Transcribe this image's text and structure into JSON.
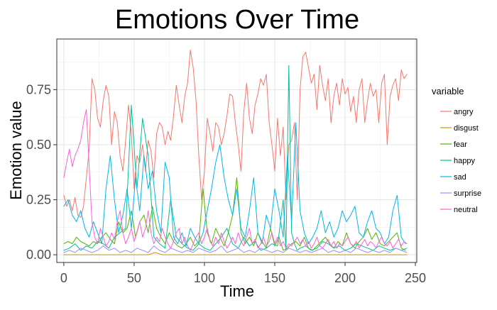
{
  "chart_data": {
    "type": "line",
    "title": "Emotions Over Time",
    "xlabel": "Time",
    "ylabel": "Emotion value",
    "xlim": [
      -5,
      251
    ],
    "ylim": [
      -0.035,
      0.98
    ],
    "x_ticks": [
      0,
      50,
      100,
      150,
      200,
      250
    ],
    "y_ticks": [
      0.0,
      0.25,
      0.5,
      0.75
    ],
    "x_tick_labels": [
      "0",
      "50",
      "100",
      "150",
      "200",
      "250"
    ],
    "y_tick_labels": [
      "0.00",
      "0.25",
      "0.50",
      "0.75"
    ],
    "grid": true,
    "legend": {
      "title": "variable",
      "placement": "right",
      "entries": [
        "angry",
        "disgust",
        "fear",
        "happy",
        "sad",
        "surprise",
        "neutral"
      ]
    },
    "series": [
      {
        "name": "angry",
        "color": "#F8766D",
        "x": [
          0,
          2,
          4,
          6,
          8,
          10,
          12,
          14,
          16,
          18,
          20,
          22,
          24,
          26,
          28,
          30,
          32,
          34,
          36,
          38,
          40,
          42,
          44,
          46,
          48,
          50,
          52,
          54,
          56,
          58,
          60,
          62,
          64,
          66,
          68,
          70,
          72,
          74,
          76,
          78,
          80,
          82,
          84,
          86,
          88,
          90,
          92,
          94,
          96,
          98,
          100,
          102,
          104,
          106,
          108,
          110,
          112,
          114,
          116,
          118,
          120,
          122,
          124,
          126,
          128,
          130,
          132,
          134,
          136,
          138,
          140,
          142,
          144,
          146,
          148,
          150,
          152,
          154,
          156,
          158,
          160,
          162,
          164,
          166,
          168,
          170,
          172,
          174,
          176,
          178,
          180,
          182,
          184,
          186,
          188,
          190,
          192,
          194,
          196,
          198,
          200,
          202,
          204,
          206,
          208,
          210,
          212,
          214,
          216,
          218,
          220,
          222,
          224,
          226,
          228,
          230,
          232,
          234,
          236,
          238,
          240,
          242,
          244
        ],
        "values": [
          0.27,
          0.22,
          0.25,
          0.2,
          0.26,
          0.18,
          0.17,
          0.22,
          0.35,
          0.48,
          0.8,
          0.75,
          0.62,
          0.58,
          0.7,
          0.77,
          0.72,
          0.5,
          0.65,
          0.6,
          0.45,
          0.38,
          0.52,
          0.68,
          0.55,
          0.3,
          0.45,
          0.42,
          0.5,
          0.38,
          0.52,
          0.47,
          0.35,
          0.55,
          0.6,
          0.58,
          0.5,
          0.56,
          0.52,
          0.63,
          0.77,
          0.68,
          0.6,
          0.72,
          0.78,
          0.93,
          0.85,
          0.7,
          0.45,
          0.25,
          0.38,
          0.62,
          0.55,
          0.47,
          0.6,
          0.58,
          0.5,
          0.55,
          0.63,
          0.73,
          0.72,
          0.6,
          0.5,
          0.38,
          0.65,
          0.78,
          0.62,
          0.55,
          0.68,
          0.73,
          0.8,
          0.77,
          0.82,
          0.6,
          0.5,
          0.38,
          0.62,
          0.45,
          0.58,
          0.25,
          0.5,
          0.52,
          0.6,
          0.25,
          0.75,
          0.9,
          0.92,
          0.85,
          0.78,
          0.82,
          0.66,
          0.86,
          0.77,
          0.7,
          0.8,
          0.6,
          0.72,
          0.78,
          0.68,
          0.8,
          0.73,
          0.76,
          0.65,
          0.72,
          0.6,
          0.75,
          0.8,
          0.6,
          0.7,
          0.78,
          0.72,
          0.75,
          0.6,
          0.78,
          0.82,
          0.5,
          0.72,
          0.77,
          0.8,
          0.7,
          0.84,
          0.8,
          0.82
        ]
      },
      {
        "name": "disgust",
        "color": "#C49A00",
        "x": [
          0,
          5,
          10,
          15,
          20,
          25,
          30,
          35,
          40,
          45,
          50,
          55,
          60,
          65,
          70,
          75,
          80,
          85,
          90,
          95,
          100,
          105,
          110,
          115,
          120,
          125,
          130,
          135,
          140,
          145,
          150,
          155,
          160,
          165,
          170,
          175,
          180,
          185,
          190,
          195,
          200,
          205,
          210,
          215,
          220,
          225,
          230,
          235,
          240,
          244
        ],
        "values": [
          0.0,
          0.0,
          0.0,
          0.0,
          0.0,
          0.0,
          0.0,
          0.0,
          0.0,
          0.0,
          0.0,
          0.0,
          0.0,
          0.01,
          0.0,
          0.0,
          0.0,
          0.0,
          0.0,
          0.0,
          0.0,
          0.0,
          0.0,
          0.0,
          0.0,
          0.0,
          0.0,
          0.0,
          0.0,
          0.0,
          0.0,
          0.0,
          0.0,
          0.0,
          0.0,
          0.0,
          0.0,
          0.0,
          0.0,
          0.0,
          0.0,
          0.0,
          0.0,
          0.0,
          0.0,
          0.0,
          0.0,
          0.0,
          0.0,
          0.0
        ]
      },
      {
        "name": "fear",
        "color": "#53B400",
        "x": [
          0,
          3,
          6,
          9,
          12,
          15,
          18,
          21,
          24,
          27,
          30,
          33,
          36,
          39,
          42,
          45,
          48,
          51,
          54,
          57,
          60,
          63,
          66,
          69,
          72,
          75,
          78,
          81,
          84,
          87,
          90,
          93,
          96,
          99,
          102,
          105,
          108,
          111,
          114,
          117,
          120,
          123,
          126,
          129,
          132,
          135,
          138,
          141,
          144,
          147,
          150,
          153,
          156,
          159,
          162,
          165,
          168,
          171,
          174,
          177,
          180,
          183,
          186,
          189,
          192,
          195,
          198,
          201,
          204,
          207,
          210,
          213,
          216,
          219,
          222,
          225,
          228,
          231,
          234,
          237,
          240,
          243
        ],
        "values": [
          0.05,
          0.06,
          0.05,
          0.08,
          0.06,
          0.05,
          0.04,
          0.06,
          0.05,
          0.08,
          0.1,
          0.07,
          0.05,
          0.15,
          0.1,
          0.12,
          0.2,
          0.08,
          0.15,
          0.18,
          0.1,
          0.22,
          0.12,
          0.08,
          0.05,
          0.1,
          0.06,
          0.04,
          0.03,
          0.05,
          0.08,
          0.04,
          0.06,
          0.3,
          0.1,
          0.05,
          0.12,
          0.08,
          0.04,
          0.1,
          0.18,
          0.35,
          0.1,
          0.05,
          0.08,
          0.04,
          0.1,
          0.06,
          0.03,
          0.12,
          0.04,
          0.08,
          0.02,
          0.03,
          0.05,
          0.06,
          0.04,
          0.08,
          0.03,
          0.02,
          0.04,
          0.06,
          0.08,
          0.05,
          0.03,
          0.06,
          0.04,
          0.1,
          0.05,
          0.03,
          0.06,
          0.08,
          0.12,
          0.07,
          0.1,
          0.05,
          0.04,
          0.06,
          0.08,
          0.1,
          0.03,
          0.02
        ]
      },
      {
        "name": "happy",
        "color": "#00C094",
        "x": [
          0,
          4,
          8,
          12,
          16,
          20,
          24,
          28,
          32,
          36,
          40,
          44,
          48,
          52,
          56,
          60,
          64,
          68,
          72,
          76,
          80,
          84,
          88,
          92,
          96,
          100,
          104,
          108,
          112,
          116,
          120,
          124,
          128,
          132,
          136,
          140,
          144,
          148,
          152,
          156,
          158,
          160,
          162,
          164,
          166,
          168,
          172,
          176,
          180,
          184,
          188,
          192,
          196,
          200,
          204,
          208,
          212,
          216,
          220,
          224,
          228,
          232,
          236,
          240,
          244
        ],
        "values": [
          0.02,
          0.03,
          0.05,
          0.02,
          0.04,
          0.03,
          0.06,
          0.05,
          0.03,
          0.08,
          0.1,
          0.12,
          0.68,
          0.3,
          0.62,
          0.45,
          0.08,
          0.05,
          0.03,
          0.25,
          0.08,
          0.05,
          0.03,
          0.02,
          0.05,
          0.03,
          0.02,
          0.05,
          0.08,
          0.12,
          0.05,
          0.03,
          0.08,
          0.04,
          0.06,
          0.02,
          0.03,
          0.05,
          0.04,
          0.25,
          0.02,
          0.86,
          0.1,
          0.05,
          0.02,
          0.03,
          0.04,
          0.02,
          0.03,
          0.06,
          0.05,
          0.03,
          0.04,
          0.02,
          0.03,
          0.05,
          0.04,
          0.03,
          0.02,
          0.04,
          0.03,
          0.02,
          0.03,
          0.02,
          0.03
        ]
      },
      {
        "name": "sad",
        "color": "#00B6EB",
        "x": [
          0,
          3,
          6,
          9,
          12,
          15,
          18,
          21,
          24,
          27,
          30,
          33,
          36,
          39,
          42,
          45,
          48,
          51,
          54,
          57,
          60,
          63,
          66,
          69,
          72,
          75,
          78,
          81,
          84,
          87,
          90,
          93,
          96,
          99,
          102,
          105,
          108,
          111,
          114,
          117,
          120,
          123,
          126,
          129,
          132,
          135,
          138,
          141,
          144,
          147,
          150,
          153,
          156,
          159,
          162,
          165,
          168,
          171,
          174,
          177,
          180,
          183,
          186,
          189,
          192,
          195,
          198,
          201,
          204,
          207,
          210,
          213,
          216,
          219,
          222,
          225,
          228,
          231,
          234,
          237,
          240,
          243
        ],
        "values": [
          0.22,
          0.25,
          0.18,
          0.15,
          0.2,
          0.12,
          0.08,
          0.15,
          0.1,
          0.05,
          0.3,
          0.45,
          0.25,
          0.1,
          0.18,
          0.3,
          0.12,
          0.35,
          0.2,
          0.45,
          0.3,
          0.38,
          0.2,
          0.1,
          0.42,
          0.35,
          0.08,
          0.05,
          0.1,
          0.04,
          0.12,
          0.08,
          0.05,
          0.1,
          0.2,
          0.3,
          0.42,
          0.5,
          0.35,
          0.25,
          0.18,
          0.3,
          0.12,
          0.08,
          0.2,
          0.35,
          0.1,
          0.05,
          0.18,
          0.12,
          0.3,
          0.2,
          0.08,
          0.45,
          0.15,
          0.6,
          0.2,
          0.1,
          0.05,
          0.08,
          0.12,
          0.2,
          0.1,
          0.15,
          0.08,
          0.12,
          0.2,
          0.15,
          0.18,
          0.22,
          0.1,
          0.08,
          0.15,
          0.2,
          0.12,
          0.1,
          0.05,
          0.08,
          0.2,
          0.27,
          0.08,
          0.05
        ]
      },
      {
        "name": "surprise",
        "color": "#A58AFF",
        "x": [
          0,
          4,
          8,
          12,
          16,
          20,
          24,
          28,
          32,
          36,
          40,
          44,
          48,
          52,
          56,
          60,
          64,
          68,
          72,
          76,
          80,
          84,
          88,
          92,
          96,
          100,
          104,
          108,
          112,
          116,
          120,
          124,
          128,
          132,
          136,
          140,
          144,
          148,
          152,
          156,
          160,
          164,
          168,
          172,
          176,
          180,
          184,
          188,
          192,
          196,
          200,
          204,
          208,
          212,
          216,
          220,
          224,
          228,
          232,
          236,
          240,
          244
        ],
        "values": [
          0.01,
          0.02,
          0.01,
          0.03,
          0.02,
          0.01,
          0.02,
          0.04,
          0.02,
          0.03,
          0.01,
          0.02,
          0.01,
          0.03,
          0.02,
          0.01,
          0.04,
          0.02,
          0.01,
          0.03,
          0.02,
          0.01,
          0.02,
          0.01,
          0.03,
          0.02,
          0.01,
          0.02,
          0.04,
          0.01,
          0.02,
          0.03,
          0.01,
          0.02,
          0.01,
          0.03,
          0.02,
          0.01,
          0.02,
          0.01,
          0.03,
          0.02,
          0.01,
          0.02,
          0.01,
          0.02,
          0.03,
          0.01,
          0.02,
          0.01,
          0.02,
          0.01,
          0.03,
          0.02,
          0.01,
          0.02,
          0.01,
          0.02,
          0.01,
          0.03,
          0.02,
          0.01
        ]
      },
      {
        "name": "neutral",
        "color": "#FB61D7",
        "x": [
          0,
          2,
          4,
          6,
          8,
          10,
          12,
          14,
          16,
          18,
          20,
          22,
          24,
          26,
          28,
          30,
          32,
          34,
          36,
          38,
          40,
          42,
          44,
          46,
          48,
          50,
          52,
          54,
          56,
          58,
          60,
          62,
          64,
          66,
          68,
          70,
          72,
          74,
          76,
          78,
          80,
          82,
          84,
          86,
          88,
          90,
          92,
          94,
          96,
          98,
          100,
          102,
          104,
          106,
          108,
          110,
          112,
          114,
          116,
          118,
          120,
          122,
          124,
          126,
          128,
          130,
          132,
          134,
          136,
          138,
          140,
          142,
          144,
          146,
          148,
          150,
          152,
          154,
          156,
          158,
          160,
          162,
          164,
          166,
          168,
          170,
          172,
          174,
          176,
          178,
          180,
          182,
          184,
          186,
          188,
          190,
          192,
          194,
          196,
          198,
          200,
          202,
          204,
          206,
          208,
          210,
          212,
          214,
          216,
          218,
          220,
          222,
          224,
          226,
          228,
          230,
          232,
          234,
          236,
          238,
          240,
          242,
          244
        ],
        "values": [
          0.35,
          0.42,
          0.48,
          0.4,
          0.45,
          0.48,
          0.52,
          0.6,
          0.66,
          0.4,
          0.15,
          0.08,
          0.05,
          0.12,
          0.08,
          0.04,
          0.06,
          0.1,
          0.07,
          0.15,
          0.2,
          0.1,
          0.05,
          0.08,
          0.12,
          0.06,
          0.1,
          0.15,
          0.08,
          0.12,
          0.2,
          0.1,
          0.05,
          0.08,
          0.06,
          0.12,
          0.08,
          0.05,
          0.03,
          0.06,
          0.1,
          0.12,
          0.05,
          0.08,
          0.04,
          0.02,
          0.05,
          0.08,
          0.1,
          0.05,
          0.08,
          0.12,
          0.06,
          0.04,
          0.08,
          0.05,
          0.1,
          0.06,
          0.03,
          0.05,
          0.08,
          0.05,
          0.1,
          0.06,
          0.04,
          0.08,
          0.12,
          0.05,
          0.07,
          0.03,
          0.05,
          0.08,
          0.04,
          0.06,
          0.1,
          0.05,
          0.08,
          0.04,
          0.06,
          0.03,
          0.05,
          0.04,
          0.06,
          0.08,
          0.05,
          0.07,
          0.04,
          0.06,
          0.03,
          0.05,
          0.08,
          0.04,
          0.03,
          0.05,
          0.07,
          0.04,
          0.06,
          0.03,
          0.05,
          0.04,
          0.06,
          0.08,
          0.05,
          0.04,
          0.06,
          0.03,
          0.05,
          0.07,
          0.04,
          0.06,
          0.05,
          0.03,
          0.06,
          0.08,
          0.05,
          0.04,
          0.06,
          0.03,
          0.05,
          0.07,
          0.04,
          0.06,
          0.05
        ]
      }
    ]
  }
}
